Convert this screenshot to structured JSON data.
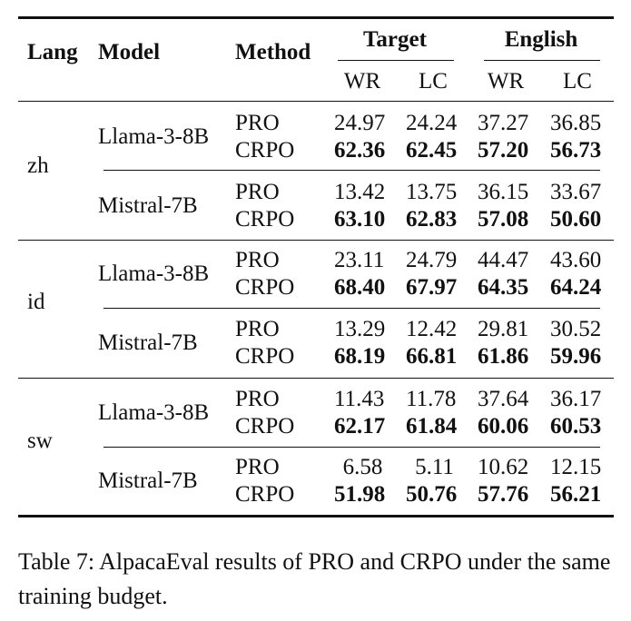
{
  "table": {
    "headers": {
      "lang": "Lang",
      "model": "Model",
      "method": "Method",
      "group_target": "Target",
      "group_english": "English",
      "sub": [
        "WR",
        "LC",
        "WR",
        "LC"
      ]
    },
    "groups": [
      {
        "lang": "zh",
        "models": [
          {
            "model": "Llama-3-8B",
            "rows": [
              {
                "method": "PRO",
                "values": [
                  "24.97",
                  "24.24",
                  "37.27",
                  "36.85"
                ],
                "bold": false
              },
              {
                "method": "CRPO",
                "values": [
                  "62.36",
                  "62.45",
                  "57.20",
                  "56.73"
                ],
                "bold": true
              }
            ]
          },
          {
            "model": "Mistral-7B",
            "rows": [
              {
                "method": "PRO",
                "values": [
                  "13.42",
                  "13.75",
                  "36.15",
                  "33.67"
                ],
                "bold": false
              },
              {
                "method": "CRPO",
                "values": [
                  "63.10",
                  "62.83",
                  "57.08",
                  "50.60"
                ],
                "bold": true
              }
            ]
          }
        ]
      },
      {
        "lang": "id",
        "models": [
          {
            "model": "Llama-3-8B",
            "rows": [
              {
                "method": "PRO",
                "values": [
                  "23.11",
                  "24.79",
                  "44.47",
                  "43.60"
                ],
                "bold": false
              },
              {
                "method": "CRPO",
                "values": [
                  "68.40",
                  "67.97",
                  "64.35",
                  "64.24"
                ],
                "bold": true
              }
            ]
          },
          {
            "model": "Mistral-7B",
            "rows": [
              {
                "method": "PRO",
                "values": [
                  "13.29",
                  "12.42",
                  "29.81",
                  "30.52"
                ],
                "bold": false
              },
              {
                "method": "CRPO",
                "values": [
                  "68.19",
                  "66.81",
                  "61.86",
                  "59.96"
                ],
                "bold": true
              }
            ]
          }
        ]
      },
      {
        "lang": "sw",
        "models": [
          {
            "model": "Llama-3-8B",
            "rows": [
              {
                "method": "PRO",
                "values": [
                  "11.43",
                  "11.78",
                  "37.64",
                  "36.17"
                ],
                "bold": false
              },
              {
                "method": "CRPO",
                "values": [
                  "62.17",
                  "61.84",
                  "60.06",
                  "60.53"
                ],
                "bold": true
              }
            ]
          },
          {
            "model": "Mistral-7B",
            "rows": [
              {
                "method": "PRO",
                "values": [
                  "6.58",
                  "5.11",
                  "10.62",
                  "12.15"
                ],
                "bold": false
              },
              {
                "method": "CRPO",
                "values": [
                  "51.98",
                  "50.76",
                  "57.76",
                  "56.21"
                ],
                "bold": true
              }
            ]
          }
        ]
      }
    ]
  },
  "caption": "Table 7: AlpacaEval results of PRO and CRPO under the same training budget."
}
